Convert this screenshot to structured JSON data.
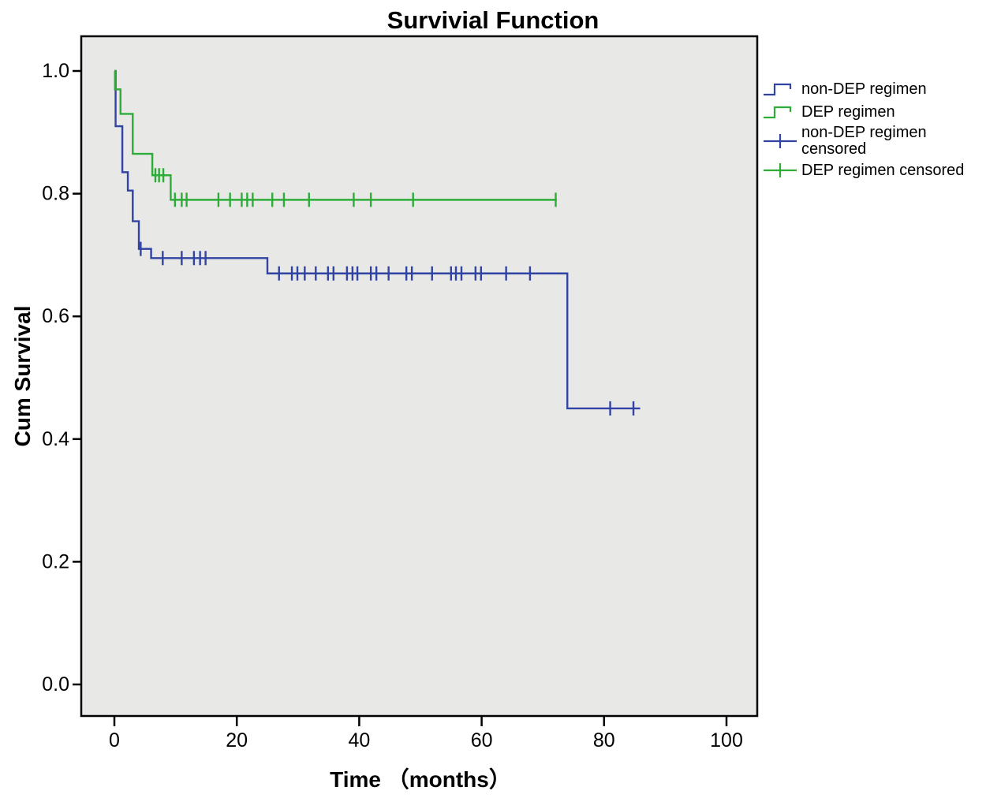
{
  "title": "Survivial Function",
  "axes": {
    "x_label": "Time （months）",
    "y_label": "Cum Survival",
    "x_ticks": [
      0,
      20,
      40,
      60,
      80,
      100
    ],
    "y_ticks": [
      0.0,
      0.2,
      0.4,
      0.6,
      0.8,
      1.0
    ]
  },
  "colors": {
    "non_dep": "#3143a3",
    "dep": "#2dac38",
    "plot_bg": "#e8e8e7",
    "axis": "#000000",
    "page_bg": "#ffffff"
  },
  "legend": {
    "items": [
      {
        "label": "non-DEP regimen",
        "type": "step-line",
        "color": "#3143a3"
      },
      {
        "label": "DEP regimen",
        "type": "step-line",
        "color": "#2dac38"
      },
      {
        "label": "non-DEP regimen censored",
        "type": "censor-cross",
        "color": "#3143a3"
      },
      {
        "label": "DEP regimen censored",
        "type": "censor-cross",
        "color": "#2dac38"
      }
    ]
  },
  "chart_data": {
    "type": "line",
    "subtype": "kaplan_meier_step",
    "title": "Survivial Function",
    "xlabel": "Time （months）",
    "ylabel": "Cum Survival",
    "xlim": [
      -5.4,
      105
    ],
    "ylim": [
      -0.05,
      1.06
    ],
    "x_ticks": [
      0,
      20,
      40,
      60,
      80,
      100
    ],
    "y_ticks": [
      0.0,
      0.2,
      0.4,
      0.6,
      0.8,
      1.0
    ],
    "grid": false,
    "legend_position": "right",
    "series": [
      {
        "name": "non-DEP regimen",
        "color": "#3143a3",
        "steps": [
          [
            0,
            1.0
          ],
          [
            0.2,
            0.91
          ],
          [
            1.3,
            0.835
          ],
          [
            2.2,
            0.805
          ],
          [
            3.0,
            0.755
          ],
          [
            4.0,
            0.71
          ],
          [
            6.0,
            0.695
          ],
          [
            25.0,
            0.67
          ],
          [
            74.0,
            0.45
          ]
        ],
        "end_time": 85.9,
        "censored": [
          [
            4.3,
            0.71
          ],
          [
            7.9,
            0.695
          ],
          [
            11.0,
            0.695
          ],
          [
            13.0,
            0.695
          ],
          [
            14.0,
            0.695
          ],
          [
            14.9,
            0.695
          ],
          [
            26.9,
            0.67
          ],
          [
            29.0,
            0.67
          ],
          [
            29.9,
            0.67
          ],
          [
            31.1,
            0.67
          ],
          [
            32.9,
            0.67
          ],
          [
            34.9,
            0.67
          ],
          [
            35.8,
            0.67
          ],
          [
            38.0,
            0.67
          ],
          [
            38.9,
            0.67
          ],
          [
            39.7,
            0.67
          ],
          [
            41.9,
            0.67
          ],
          [
            42.8,
            0.67
          ],
          [
            44.8,
            0.67
          ],
          [
            47.7,
            0.67
          ],
          [
            48.6,
            0.67
          ],
          [
            51.9,
            0.67
          ],
          [
            55.0,
            0.67
          ],
          [
            55.8,
            0.67
          ],
          [
            56.7,
            0.67
          ],
          [
            59.0,
            0.67
          ],
          [
            59.9,
            0.67
          ],
          [
            64.0,
            0.67
          ],
          [
            67.9,
            0.67
          ],
          [
            81.0,
            0.45
          ],
          [
            84.8,
            0.45
          ]
        ]
      },
      {
        "name": "DEP regimen",
        "color": "#2dac38",
        "steps": [
          [
            0,
            1.0
          ],
          [
            0.1,
            0.97
          ],
          [
            1.0,
            0.93
          ],
          [
            3.0,
            0.865
          ],
          [
            6.2,
            0.83
          ],
          [
            9.2,
            0.79
          ]
        ],
        "end_time": 72.3,
        "censored": [
          [
            6.7,
            0.83
          ],
          [
            7.3,
            0.83
          ],
          [
            8.0,
            0.83
          ],
          [
            9.9,
            0.79
          ],
          [
            11.0,
            0.79
          ],
          [
            11.8,
            0.79
          ],
          [
            17.0,
            0.79
          ],
          [
            18.9,
            0.79
          ],
          [
            20.8,
            0.79
          ],
          [
            21.7,
            0.79
          ],
          [
            22.6,
            0.79
          ],
          [
            25.8,
            0.79
          ],
          [
            27.7,
            0.79
          ],
          [
            31.8,
            0.79
          ],
          [
            39.1,
            0.79
          ],
          [
            41.9,
            0.79
          ],
          [
            48.8,
            0.79
          ],
          [
            72.1,
            0.79
          ]
        ]
      }
    ]
  }
}
